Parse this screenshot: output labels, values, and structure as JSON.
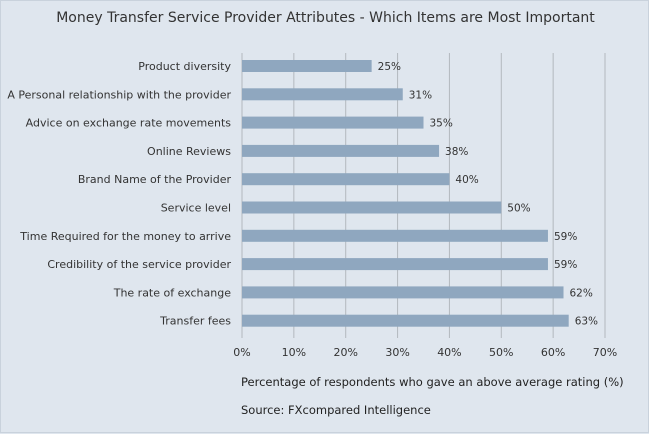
{
  "chart_data": {
    "type": "bar",
    "orientation": "horizontal",
    "title": "Money Transfer Service Provider Attributes  - Which Items are Most Important",
    "categories": [
      "Product diversity",
      "A Personal relationship with the provider",
      "Advice on exchange rate movements",
      "Online Reviews",
      "Brand Name of the Provider",
      "Service level",
      "Time Required for the money to arrive",
      "Credibility of the service provider",
      "The rate of exchange",
      "Transfer fees"
    ],
    "values": [
      25,
      31,
      35,
      38,
      40,
      50,
      59,
      59,
      62,
      63
    ],
    "value_labels": [
      "25%",
      "31%",
      "35%",
      "38%",
      "40%",
      "50%",
      "59%",
      "59%",
      "62%",
      "63%"
    ],
    "xlim": [
      0,
      70
    ],
    "xticks": [
      0,
      10,
      20,
      30,
      40,
      50,
      60,
      70
    ],
    "xtick_labels": [
      "0%",
      "10%",
      "20%",
      "30%",
      "40%",
      "50%",
      "60%",
      "70%"
    ],
    "xlabel": "Percentage of respondents who gave an above average rating (%)",
    "ylabel": "",
    "grid": true,
    "source": "Source: FXcompared Intelligence",
    "colors": {
      "bar": "#8fa7bf",
      "grid": "#b3b8be",
      "background": "#dfe6ee"
    }
  }
}
